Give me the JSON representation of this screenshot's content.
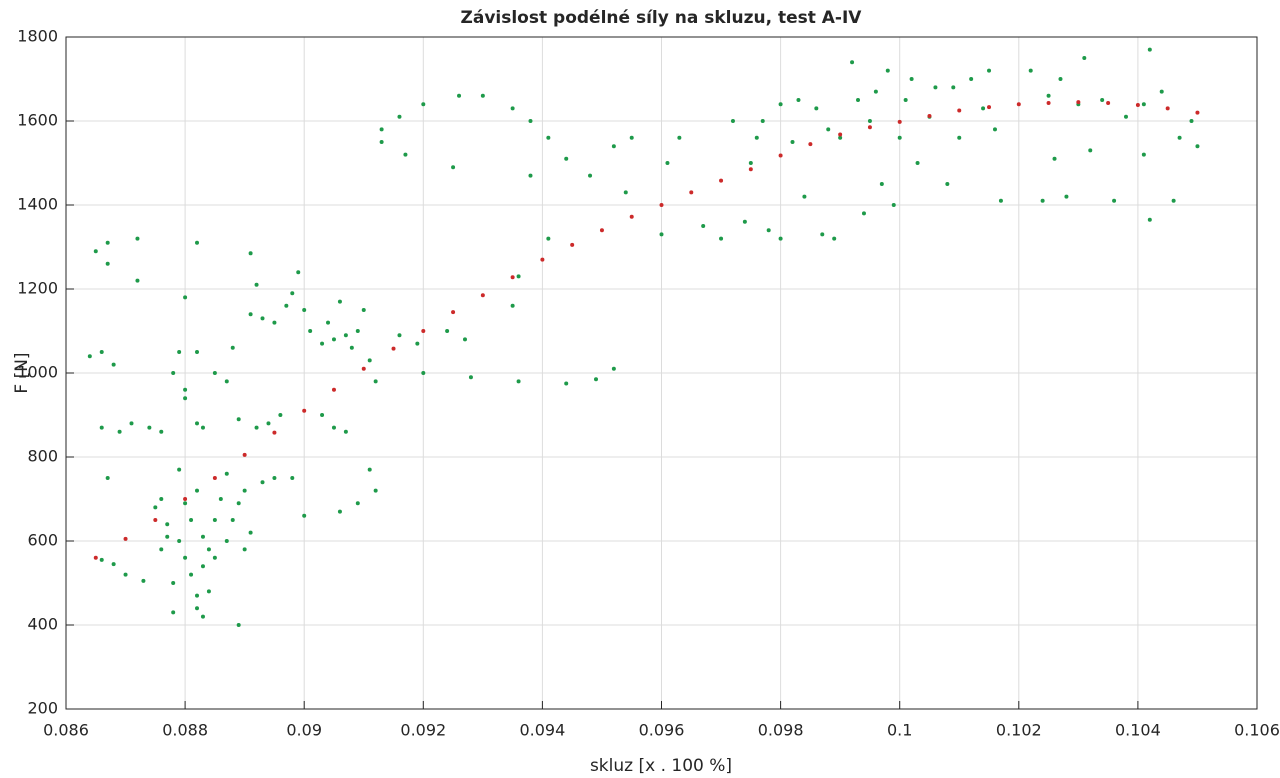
{
  "chart_data": {
    "type": "scatter",
    "title": "Závislost podélné síly na skluzu, test A-IV",
    "xlabel": "skluz [x . 100 %]",
    "ylabel": "F [N]",
    "xlim": [
      0.086,
      0.106
    ],
    "xticks": [
      0.086,
      0.088,
      0.09,
      0.092,
      0.094,
      0.096,
      0.098,
      0.1,
      0.102,
      0.104,
      0.106
    ],
    "ylim": [
      200,
      1800
    ],
    "yticks": [
      200,
      400,
      600,
      800,
      1000,
      1200,
      1400,
      1600,
      1800
    ],
    "grid": true,
    "series": [
      {
        "color": "#1e9a4a",
        "x": [
          0.0866,
          0.0868,
          0.087,
          0.0873,
          0.0875,
          0.0876,
          0.0877,
          0.0878,
          0.0879,
          0.088,
          0.088,
          0.0881,
          0.0881,
          0.0882,
          0.0882,
          0.0883,
          0.0883,
          0.0884,
          0.0884,
          0.0885,
          0.0885,
          0.0886,
          0.0887,
          0.0887,
          0.0888,
          0.0889,
          0.0889,
          0.089,
          0.089,
          0.0891,
          0.0879,
          0.0877,
          0.0876,
          0.0878,
          0.0882,
          0.0883,
          0.0864,
          0.0866,
          0.0868,
          0.0866,
          0.0867,
          0.0869,
          0.0871,
          0.0874,
          0.0876,
          0.0878,
          0.088,
          0.088,
          0.0882,
          0.0883,
          0.0879,
          0.0882,
          0.0885,
          0.0887,
          0.0888,
          0.0891,
          0.0892,
          0.0893,
          0.0895,
          0.0897,
          0.0898,
          0.0899,
          0.09,
          0.0901,
          0.0903,
          0.0904,
          0.0905,
          0.0906,
          0.0907,
          0.0908,
          0.0909,
          0.091,
          0.0911,
          0.0912,
          0.0889,
          0.0892,
          0.0894,
          0.0896,
          0.0898,
          0.0893,
          0.0895,
          0.09,
          0.0903,
          0.0905,
          0.0907,
          0.0911,
          0.0912,
          0.0909,
          0.0906,
          0.0865,
          0.0867,
          0.0867,
          0.0872,
          0.0872,
          0.088,
          0.0882,
          0.0891,
          0.0913,
          0.0913,
          0.0916,
          0.0917,
          0.092,
          0.0925,
          0.0926,
          0.093,
          0.0935,
          0.0938,
          0.0938,
          0.0941,
          0.0944,
          0.0948,
          0.0952,
          0.0954,
          0.0955,
          0.0916,
          0.0919,
          0.092,
          0.0924,
          0.0927,
          0.0928,
          0.0935,
          0.0936,
          0.0944,
          0.0949,
          0.0952,
          0.0936,
          0.0941,
          0.096,
          0.0961,
          0.0963,
          0.0967,
          0.097,
          0.0972,
          0.0974,
          0.0975,
          0.0976,
          0.0977,
          0.0978,
          0.098,
          0.098,
          0.0982,
          0.0983,
          0.0984,
          0.0986,
          0.0987,
          0.0988,
          0.0989,
          0.099,
          0.0992,
          0.0993,
          0.0994,
          0.0995,
          0.0996,
          0.0997,
          0.0998,
          0.0999,
          0.1,
          0.1001,
          0.1002,
          0.1003,
          0.1005,
          0.1006,
          0.1008,
          0.1009,
          0.101,
          0.1012,
          0.1014,
          0.1015,
          0.1016,
          0.1017,
          0.1022,
          0.1024,
          0.1025,
          0.1026,
          0.1027,
          0.1028,
          0.103,
          0.1031,
          0.1032,
          0.1034,
          0.1036,
          0.1038,
          0.1041,
          0.1041,
          0.1042,
          0.1042,
          0.1044,
          0.1046,
          0.1047,
          0.1049,
          0.105
        ],
        "values": [
          555,
          545,
          520,
          505,
          680,
          700,
          640,
          430,
          600,
          690,
          560,
          520,
          650,
          470,
          720,
          540,
          610,
          580,
          480,
          650,
          560,
          700,
          600,
          760,
          650,
          400,
          690,
          580,
          720,
          620,
          770,
          610,
          580,
          500,
          440,
          420,
          1040,
          1050,
          1020,
          870,
          750,
          860,
          880,
          870,
          860,
          1000,
          960,
          940,
          880,
          870,
          1050,
          1050,
          1000,
          980,
          1060,
          1140,
          1210,
          1130,
          1120,
          1160,
          1190,
          1240,
          1150,
          1100,
          1070,
          1120,
          1080,
          1170,
          1090,
          1060,
          1100,
          1150,
          1030,
          980,
          890,
          870,
          880,
          900,
          750,
          740,
          750,
          660,
          900,
          870,
          860,
          770,
          720,
          690,
          670,
          1290,
          1310,
          1260,
          1320,
          1220,
          1180,
          1310,
          1285,
          1580,
          1550,
          1610,
          1520,
          1640,
          1490,
          1660,
          1660,
          1630,
          1600,
          1470,
          1560,
          1510,
          1470,
          1540,
          1430,
          1560,
          1090,
          1070,
          1000,
          1100,
          1080,
          990,
          1160,
          980,
          975,
          985,
          1010,
          1230,
          1320,
          1330,
          1500,
          1560,
          1350,
          1320,
          1600,
          1360,
          1500,
          1560,
          1600,
          1340,
          1640,
          1320,
          1550,
          1650,
          1420,
          1630,
          1330,
          1580,
          1320,
          1560,
          1740,
          1650,
          1380,
          1600,
          1670,
          1450,
          1720,
          1400,
          1560,
          1650,
          1700,
          1500,
          1610,
          1680,
          1450,
          1680,
          1560,
          1700,
          1630,
          1720,
          1580,
          1410,
          1720,
          1410,
          1660,
          1510,
          1700,
          1420,
          1640,
          1750,
          1530,
          1650,
          1410,
          1610,
          1640,
          1520,
          1365,
          1770,
          1670,
          1410,
          1560,
          1600,
          1540
        ]
      },
      {
        "color": "#cc2a2a",
        "x": [
          0.0865,
          0.087,
          0.0875,
          0.088,
          0.0885,
          0.089,
          0.0895,
          0.09,
          0.0905,
          0.091,
          0.0915,
          0.092,
          0.0925,
          0.093,
          0.0935,
          0.094,
          0.0945,
          0.095,
          0.0955,
          0.096,
          0.0965,
          0.097,
          0.0975,
          0.098,
          0.0985,
          0.099,
          0.0995,
          0.1,
          0.1005,
          0.101,
          0.1015,
          0.102,
          0.1025,
          0.103,
          0.1035,
          0.104,
          0.1045,
          0.105
        ],
        "values": [
          560,
          605,
          650,
          700,
          750,
          805,
          858,
          910,
          960,
          1010,
          1058,
          1100,
          1145,
          1185,
          1228,
          1270,
          1305,
          1340,
          1372,
          1400,
          1430,
          1458,
          1485,
          1518,
          1545,
          1568,
          1585,
          1598,
          1612,
          1625,
          1633,
          1640,
          1643,
          1645,
          1643,
          1638,
          1630,
          1620
        ]
      }
    ]
  }
}
